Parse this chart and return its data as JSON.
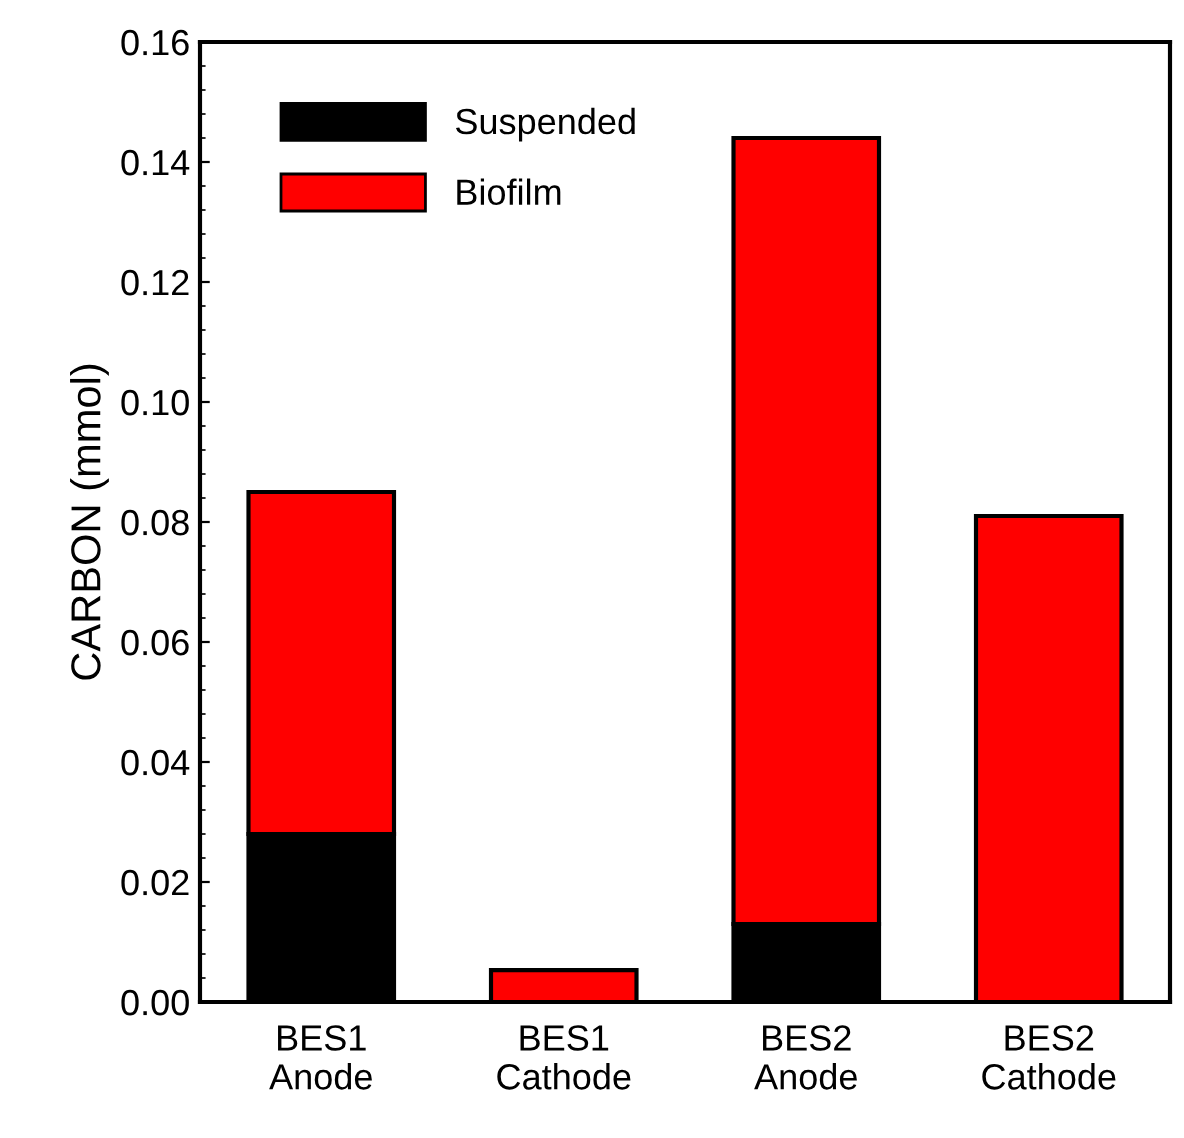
{
  "chart_data": {
    "type": "bar",
    "stacked": true,
    "ylabel": "CARBON (mmol)",
    "categories": [
      "BES1\nAnode",
      "BES1\nCathode",
      "BES2\nAnode",
      "BES2\nCathode"
    ],
    "series": [
      {
        "name": "Suspended",
        "color": "#000000",
        "values": [
          0.028,
          0.0,
          0.013,
          0.0
        ]
      },
      {
        "name": "Biofilm",
        "color": "#ff0000",
        "values": [
          0.057,
          0.0053,
          0.131,
          0.081
        ]
      }
    ],
    "ylim": [
      0,
      0.16
    ],
    "yticks": [
      {
        "value": 0,
        "label": "0.00"
      },
      {
        "value": 0.02,
        "label": "0.02"
      },
      {
        "value": 0.04,
        "label": "0.04"
      },
      {
        "value": 0.06,
        "label": "0.06"
      },
      {
        "value": 0.08,
        "label": "0.08"
      },
      {
        "value": 0.1,
        "label": "0.10"
      },
      {
        "value": 0.12,
        "label": "0.12"
      },
      {
        "value": 0.14,
        "label": "0.14"
      },
      {
        "value": 0.16,
        "label": "0.16"
      }
    ],
    "grid": false,
    "legend": "top left"
  }
}
